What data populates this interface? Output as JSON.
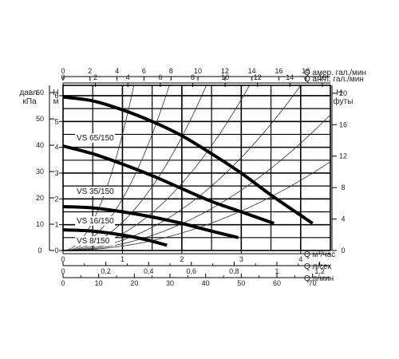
{
  "chart_data": {
    "type": "line",
    "axes": {
      "x_bottom_m3h": {
        "unit_label": "Q  м³/час",
        "ticks": [
          0,
          1,
          2,
          3,
          4
        ],
        "range": [
          0,
          4.5
        ]
      },
      "x_bottom_ls": {
        "unit_label": "Q  л/сек",
        "ticks": [
          "0",
          "0,2",
          "0,4",
          "0,6",
          "0,8",
          "1",
          "1,2"
        ],
        "tick_values": [
          0,
          0.2,
          0.4,
          0.6,
          0.8,
          1.0,
          1.2
        ]
      },
      "x_bottom_lmin": {
        "unit_label": "Q  л/мин",
        "ticks": [
          0,
          10,
          20,
          30,
          40,
          50,
          60,
          70
        ]
      },
      "x_top_us": {
        "unit_label": "Q  амер. гал./мин",
        "ticks": [
          0,
          2,
          4,
          6,
          8,
          10,
          12,
          14,
          16,
          18
        ]
      },
      "x_top_uk": {
        "unit_label": "Q  англ. гал./мин",
        "ticks": [
          0,
          2,
          4,
          6,
          8,
          10,
          12,
          14,
          16
        ]
      },
      "y_left_kpa": {
        "title_lines": [
          "давл.",
          "кПа"
        ],
        "ticks": [
          0,
          10,
          20,
          30,
          40,
          50,
          60
        ]
      },
      "y_left_m": {
        "title_lines": [
          "H",
          "м"
        ],
        "ticks": [
          0,
          1,
          2,
          3,
          4,
          5,
          6
        ],
        "range": [
          0,
          6.4
        ]
      },
      "y_right_ft": {
        "title_lines": [
          "H",
          "футы"
        ],
        "ticks": [
          0,
          4,
          8,
          12,
          16,
          20
        ]
      }
    },
    "series": [
      {
        "name": "VS 65/150",
        "x": [
          0,
          0.5,
          1,
          1.5,
          2,
          2.5,
          3,
          3.5,
          4.2
        ],
        "y": [
          5.95,
          5.8,
          5.45,
          5.0,
          4.45,
          3.75,
          3.0,
          2.15,
          1.05
        ]
      },
      {
        "name": "VS 35/150",
        "x": [
          0,
          0.5,
          1,
          1.5,
          2,
          2.5,
          3,
          3.55
        ],
        "y": [
          4.05,
          3.75,
          3.35,
          2.9,
          2.4,
          1.9,
          1.5,
          1.05
        ]
      },
      {
        "name": "VS 16/150",
        "x": [
          0,
          0.5,
          1,
          1.5,
          2,
          2.5,
          2.95
        ],
        "y": [
          1.7,
          1.65,
          1.5,
          1.3,
          1.05,
          0.75,
          0.5
        ]
      },
      {
        "name": "VS 8/150",
        "x": [
          0,
          0.5,
          1,
          1.4,
          1.75
        ],
        "y": [
          0.8,
          0.75,
          0.6,
          0.42,
          0.2
        ]
      }
    ],
    "system_curves": true,
    "grid": true
  }
}
